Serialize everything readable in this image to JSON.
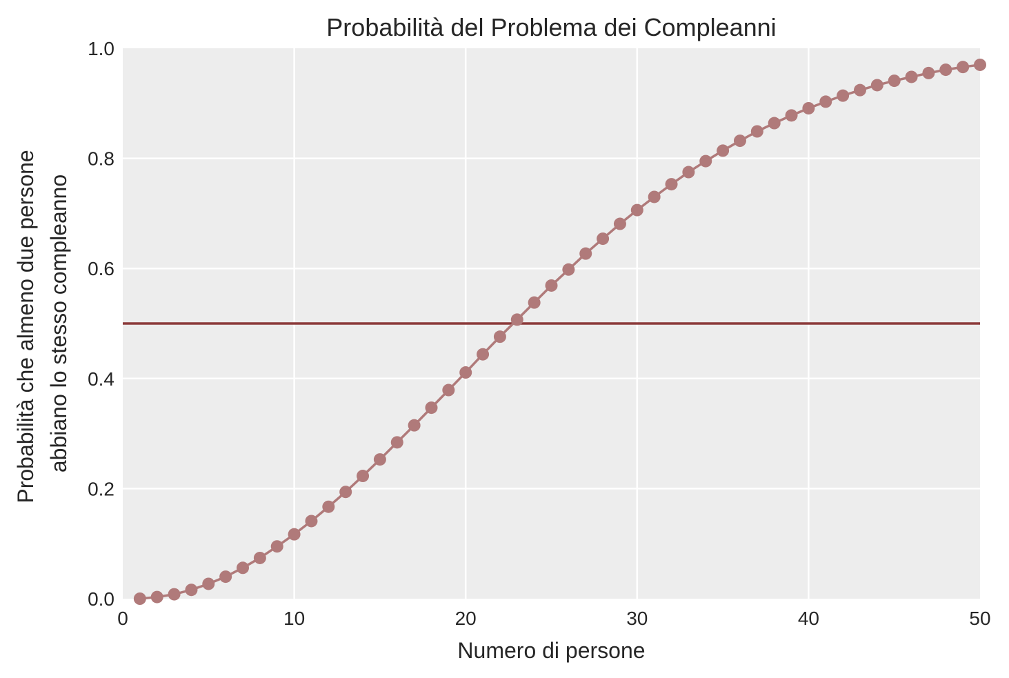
{
  "chart_data": {
    "type": "line",
    "title": "Probabilità del Problema dei Compleanni",
    "xlabel": "Numero di persone",
    "ylabel_lines": [
      "Probabilità che almeno due persone",
      "abbiano lo stesso compleanno"
    ],
    "xlim": [
      0,
      50
    ],
    "ylim": [
      0,
      1
    ],
    "xticks": [
      0,
      10,
      20,
      30,
      40,
      50
    ],
    "xtick_labels": [
      "0",
      "10",
      "20",
      "30",
      "40",
      "50"
    ],
    "yticks": [
      0,
      0.2,
      0.4,
      0.6,
      0.8,
      1.0
    ],
    "ytick_labels": [
      "0.0",
      "0.2",
      "0.4",
      "0.6",
      "0.8",
      "1.0"
    ],
    "grid": true,
    "x": [
      1,
      2,
      3,
      4,
      5,
      6,
      7,
      8,
      9,
      10,
      11,
      12,
      13,
      14,
      15,
      16,
      17,
      18,
      19,
      20,
      21,
      22,
      23,
      24,
      25,
      26,
      27,
      28,
      29,
      30,
      31,
      32,
      33,
      34,
      35,
      36,
      37,
      38,
      39,
      40,
      41,
      42,
      43,
      44,
      45,
      46,
      47,
      48,
      49,
      50
    ],
    "series": [
      {
        "values": [
          0.0,
          0.003,
          0.008,
          0.016,
          0.027,
          0.04,
          0.056,
          0.074,
          0.095,
          0.117,
          0.141,
          0.167,
          0.194,
          0.223,
          0.253,
          0.284,
          0.315,
          0.347,
          0.379,
          0.411,
          0.444,
          0.476,
          0.507,
          0.538,
          0.569,
          0.598,
          0.627,
          0.654,
          0.681,
          0.706,
          0.73,
          0.753,
          0.775,
          0.795,
          0.814,
          0.832,
          0.849,
          0.864,
          0.878,
          0.891,
          0.903,
          0.914,
          0.924,
          0.933,
          0.941,
          0.948,
          0.955,
          0.961,
          0.966,
          0.97
        ],
        "color": "#b07a7a"
      }
    ],
    "reference_line": {
      "y": 0.5,
      "color": "#8b3a3a"
    },
    "plot_background": "#ededed",
    "grid_color": "#ffffff"
  }
}
